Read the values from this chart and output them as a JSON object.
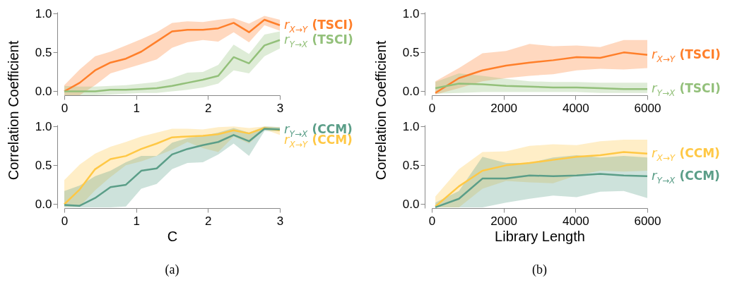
{
  "chart_data": [
    {
      "type": "line",
      "ylabel": "Correlation Coefficient",
      "xlim": [
        0,
        3
      ],
      "xticks": [
        0,
        1,
        2,
        3
      ],
      "ylim": [
        -0.05,
        1.02
      ],
      "yticks": [
        {
          "value": 0,
          "label": "0.0"
        },
        {
          "value": 0.5,
          "label": "0.5"
        },
        {
          "value": 1,
          "label": "1.0"
        }
      ],
      "grid": false,
      "legend": false,
      "x": [
        0,
        0.214,
        0.429,
        0.643,
        0.857,
        1.071,
        1.286,
        1.5,
        1.714,
        1.929,
        2.143,
        2.357,
        2.571,
        2.786,
        3.0
      ],
      "series": [
        {
          "name": "r$_{X→Y}$ (TSCI)",
          "color": "#ff7f2a",
          "values": [
            0,
            0.11,
            0.27,
            0.37,
            0.42,
            0.51,
            0.64,
            0.77,
            0.79,
            0.79,
            0.81,
            0.88,
            0.76,
            0.92,
            0.85
          ],
          "upper": [
            0.08,
            0.28,
            0.45,
            0.51,
            0.59,
            0.67,
            0.76,
            0.88,
            0.9,
            0.89,
            0.92,
            0.94,
            0.87,
            0.97,
            0.92
          ],
          "lower": [
            -0.05,
            -0.05,
            0.08,
            0.23,
            0.29,
            0.35,
            0.41,
            0.56,
            0.63,
            0.66,
            0.64,
            0.76,
            0.63,
            0.85,
            0.78
          ]
        },
        {
          "name": "r$_{Y→X}$ (TSCI)",
          "color": "#93c07a",
          "values": [
            0,
            0,
            0,
            0.02,
            0.02,
            0.03,
            0.04,
            0.07,
            0.11,
            0.15,
            0.2,
            0.44,
            0.36,
            0.59,
            0.66
          ],
          "upper": [
            0.07,
            0.06,
            0.06,
            0.07,
            0.08,
            0.1,
            0.12,
            0.17,
            0.24,
            0.25,
            0.34,
            0.6,
            0.48,
            0.73,
            0.77
          ],
          "lower": [
            -0.05,
            -0.05,
            -0.05,
            -0.04,
            -0.03,
            -0.02,
            -0.02,
            0,
            0.02,
            0.05,
            0.1,
            0.27,
            0.23,
            0.45,
            0.55
          ]
        }
      ]
    },
    {
      "type": "line",
      "xlabel": "C",
      "xlim": [
        0,
        3
      ],
      "xticks": [
        0,
        1,
        2,
        3
      ],
      "ylim": [
        -0.05,
        1.02
      ],
      "yticks": [
        {
          "value": 0,
          "label": "0.0"
        },
        {
          "value": 0.5,
          "label": "0.5"
        },
        {
          "value": 1,
          "label": "1.0"
        }
      ],
      "grid": false,
      "legend": false,
      "annotations": [
        "(a)"
      ],
      "x": [
        0,
        0.214,
        0.429,
        0.643,
        0.857,
        1.071,
        1.286,
        1.5,
        1.714,
        1.929,
        2.143,
        2.357,
        2.571,
        2.786,
        3.0
      ],
      "series": [
        {
          "name": "r$_{X→Y}$ (CCM)",
          "color": "#ffc845",
          "values": [
            0,
            0.19,
            0.45,
            0.58,
            0.62,
            0.71,
            0.78,
            0.86,
            0.87,
            0.88,
            0.9,
            0.95,
            0.91,
            0.98,
            0.95
          ],
          "upper": [
            0.31,
            0.51,
            0.65,
            0.74,
            0.8,
            0.87,
            0.92,
            0.97,
            0.97,
            0.96,
            0.99,
            1.0,
            0.98,
            1.0,
            0.99
          ],
          "lower": [
            -0.03,
            -0.03,
            0.18,
            0.35,
            0.5,
            0.55,
            0.62,
            0.7,
            0.8,
            0.72,
            0.67,
            0.87,
            0.78,
            0.96,
            0.89
          ]
        },
        {
          "name": "r$_{Y→X}$ (CCM)",
          "color": "#5b9e88",
          "values": [
            -0.01,
            -0.02,
            0.08,
            0.22,
            0.25,
            0.43,
            0.46,
            0.64,
            0.71,
            0.76,
            0.8,
            0.89,
            0.81,
            0.97,
            0.96
          ],
          "upper": [
            0.17,
            0.24,
            0.36,
            0.43,
            0.54,
            0.62,
            0.62,
            0.79,
            0.85,
            0.88,
            0.92,
            0.98,
            0.92,
            1.0,
            0.99
          ],
          "lower": [
            -0.04,
            -0.04,
            -0.04,
            -0.04,
            -0.03,
            0.2,
            0.26,
            0.45,
            0.53,
            0.54,
            0.64,
            0.78,
            0.62,
            0.94,
            0.94
          ]
        }
      ]
    },
    {
      "type": "line",
      "ylabel": "Correlation Coefficient",
      "xlim": [
        0,
        6000
      ],
      "xticks": [
        0,
        2000,
        4000,
        6000
      ],
      "ylim": [
        -0.05,
        1.02
      ],
      "yticks": [
        {
          "value": 0,
          "label": "0.0"
        },
        {
          "value": 0.5,
          "label": "0.5"
        },
        {
          "value": 1,
          "label": "1.0"
        }
      ],
      "grid": false,
      "legend": false,
      "x": [
        100,
        756,
        1411,
        2067,
        2722,
        3378,
        4033,
        4689,
        5344,
        6000
      ],
      "series": [
        {
          "name": "r$_{X→Y}$ (TSCI)",
          "color": "#ff7f2a",
          "values": [
            -0.02,
            0.17,
            0.27,
            0.33,
            0.37,
            0.4,
            0.44,
            0.43,
            0.5,
            0.47
          ],
          "upper": [
            0.13,
            0.3,
            0.49,
            0.52,
            0.61,
            0.58,
            0.59,
            0.57,
            0.66,
            0.66
          ],
          "lower": [
            -0.04,
            0.04,
            0.13,
            0.17,
            0.2,
            0.22,
            0.27,
            0.29,
            0.28,
            0.3
          ]
        },
        {
          "name": "r$_{Y→X}$ (TSCI)",
          "color": "#93c07a",
          "values": [
            0.04,
            0.1,
            0.09,
            0.07,
            0.06,
            0.05,
            0.05,
            0.04,
            0.03,
            0.03
          ],
          "upper": [
            0.12,
            0.23,
            0.2,
            0.16,
            0.13,
            0.12,
            0.12,
            0.11,
            0.11,
            0.11
          ],
          "lower": [
            -0.03,
            -0.02,
            -0.01,
            -0.01,
            -0.01,
            -0.01,
            -0.01,
            -0.02,
            -0.02,
            -0.02
          ]
        }
      ]
    },
    {
      "type": "line",
      "xlabel": "Library Length",
      "xlim": [
        0,
        6000
      ],
      "xticks": [
        0,
        2000,
        4000,
        6000
      ],
      "ylim": [
        -0.05,
        1.02
      ],
      "yticks": [
        {
          "value": 0,
          "label": "0.0"
        },
        {
          "value": 0.5,
          "label": "0.5"
        },
        {
          "value": 1,
          "label": "1.0"
        }
      ],
      "grid": false,
      "legend": false,
      "annotations": [
        "(b)"
      ],
      "x": [
        100,
        756,
        1411,
        2067,
        2722,
        3378,
        4033,
        4689,
        5344,
        6000
      ],
      "series": [
        {
          "name": "r$_{X→Y}$ (CCM)",
          "color": "#ffc845",
          "values": [
            -0.03,
            0.23,
            0.43,
            0.5,
            0.53,
            0.57,
            0.61,
            0.63,
            0.67,
            0.65
          ],
          "upper": [
            0.1,
            0.45,
            0.67,
            0.68,
            0.75,
            0.77,
            0.76,
            0.81,
            0.83,
            0.83
          ],
          "lower": [
            -0.04,
            -0.04,
            0.2,
            0.3,
            0.28,
            0.27,
            0.37,
            0.43,
            0.42,
            0.43
          ]
        },
        {
          "name": "r$_{Y→X}$ (CCM)",
          "color": "#5b9e88",
          "values": [
            -0.04,
            0.07,
            0.33,
            0.33,
            0.37,
            0.36,
            0.37,
            0.39,
            0.37,
            0.36
          ],
          "upper": [
            0.02,
            0.17,
            0.61,
            0.53,
            0.53,
            0.6,
            0.63,
            0.6,
            0.62,
            0.6
          ],
          "lower": [
            -0.04,
            -0.04,
            -0.04,
            0.02,
            0.07,
            0.11,
            0.09,
            0.16,
            0.17,
            0.08
          ]
        }
      ]
    }
  ]
}
